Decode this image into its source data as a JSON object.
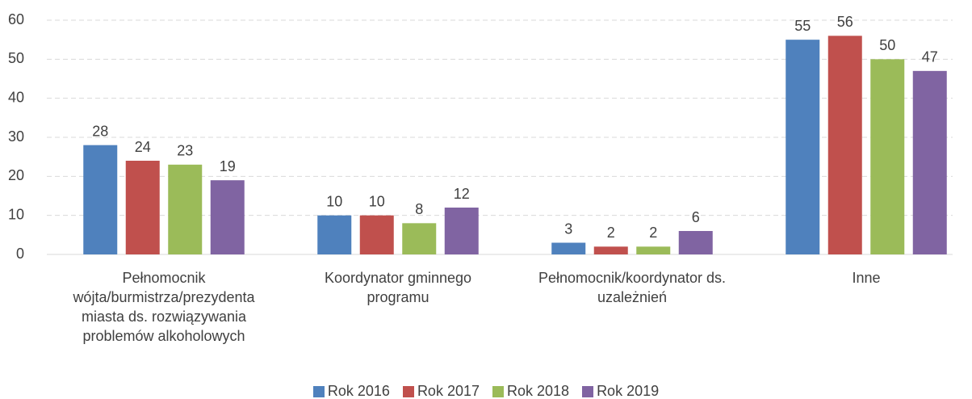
{
  "chart_data": {
    "type": "bar",
    "categories": [
      "Pełnomocnik wójta/burmistrza/prezydenta miasta ds. rozwiązywania problemów alkoholowych",
      "Koordynator gminnego programu",
      "Pełnomocnik/koordynator ds. uzależnień",
      "Inne"
    ],
    "series": [
      {
        "name": "Rok 2016",
        "color": "#4f81bd",
        "values": [
          28,
          10,
          3,
          55
        ]
      },
      {
        "name": "Rok 2017",
        "color": "#c0504d",
        "values": [
          24,
          10,
          2,
          56
        ]
      },
      {
        "name": "Rok 2018",
        "color": "#9bbb59",
        "values": [
          23,
          8,
          2,
          50
        ]
      },
      {
        "name": "Rok 2019",
        "color": "#8064a2",
        "values": [
          19,
          12,
          6,
          47
        ]
      }
    ],
    "ylim": [
      0,
      60
    ],
    "yticks": [
      0,
      10,
      20,
      30,
      40,
      50,
      60
    ],
    "grid": true,
    "legend": "bottom"
  }
}
